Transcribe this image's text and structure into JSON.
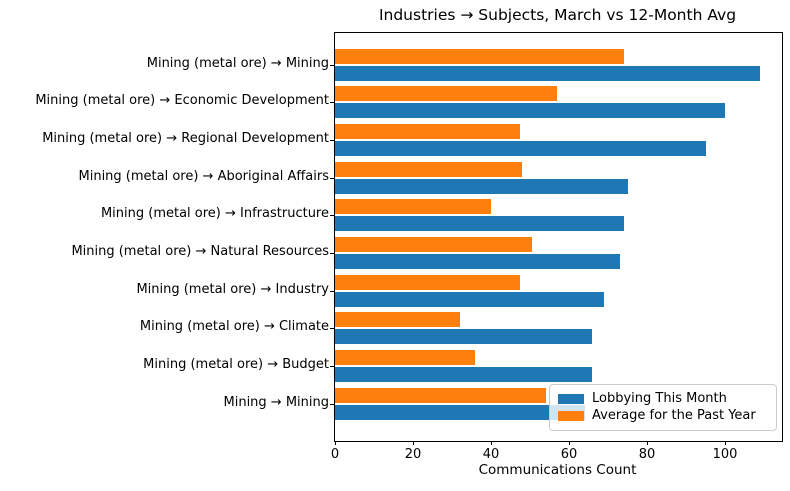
{
  "chart_data": {
    "type": "bar",
    "orientation": "horizontal",
    "title": "Industries → Subjects, March vs 12-Month Avg",
    "xlabel": "Communications Count",
    "ylabel": "",
    "categories": [
      "Mining (metal ore) → Mining",
      "Mining (metal ore) → Economic Development",
      "Mining (metal ore) → Regional Development",
      "Mining (metal ore) → Aboriginal Affairs",
      "Mining (metal ore) → Infrastructure",
      "Mining (metal ore) → Natural Resources",
      "Mining (metal ore) → Industry",
      "Mining (metal ore) → Climate",
      "Mining (metal ore) → Budget",
      "Mining → Mining"
    ],
    "series": [
      {
        "name": "Lobbying This Month",
        "color": "#1f77b4",
        "values": [
          109,
          100,
          95,
          75,
          74,
          73,
          69,
          66,
          66,
          64
        ]
      },
      {
        "name": "Average for the Past Year",
        "color": "#ff7f0e",
        "values": [
          74,
          57,
          47.5,
          48,
          40,
          50.5,
          47.5,
          32,
          36,
          54
        ]
      }
    ],
    "xticks": [
      0,
      20,
      40,
      60,
      80,
      100
    ],
    "xlim": [
      0,
      114.6
    ],
    "grid": false,
    "legend_position": "lower right",
    "background_color": "#ffffff",
    "axis_color": "#000000"
  }
}
